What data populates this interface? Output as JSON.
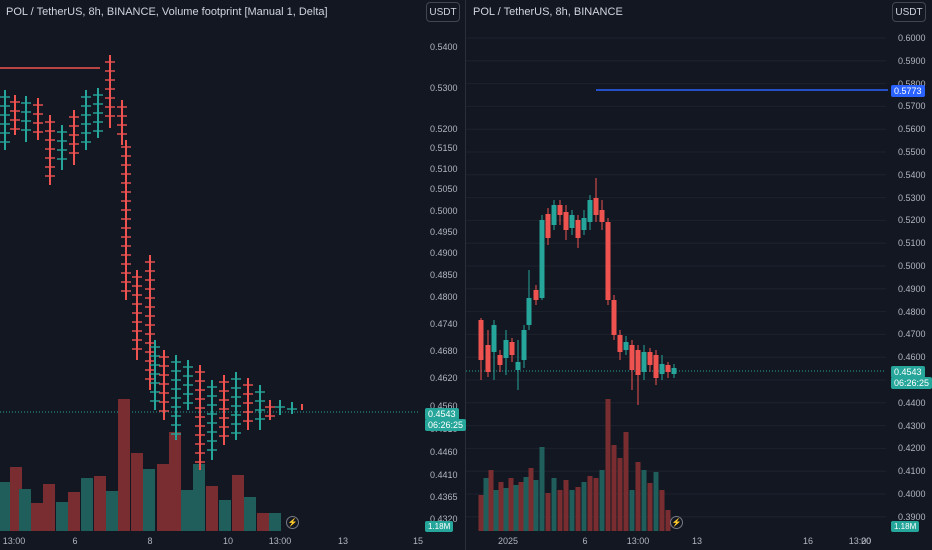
{
  "colors": {
    "bg": "#131722",
    "up": "#26a69a",
    "down": "#ef5350",
    "up_vol": "#1f5e5a",
    "down_vol": "#7a2d30",
    "grid": "#1e222d",
    "accent_line": "#2962ff"
  },
  "left": {
    "title": "POL / TetherUS, 8h, BINANCE, Volume footprint [Manual 1, Delta]",
    "currency": "USDT",
    "price_labels": [
      "0.5400",
      "0.5300",
      "0.5200",
      "0.5150",
      "0.5100",
      "0.5050",
      "0.5000",
      "0.4950",
      "0.4900",
      "0.4850",
      "0.4800",
      "0.4740",
      "0.4680",
      "0.4620",
      "0.4560",
      "0.4510",
      "0.4460",
      "0.4410",
      "0.4365",
      "0.4320"
    ],
    "last_price": "0.4543",
    "countdown": "06:26:25",
    "volume_tag": "1.18M",
    "time_labels": [
      "13:00",
      "6",
      "8",
      "10",
      "13:00",
      "13",
      "15"
    ]
  },
  "right": {
    "title": "POL / TetherUS, 8h, BINANCE",
    "currency": "USDT",
    "price_labels": [
      "0.6000",
      "0.5900",
      "0.5800",
      "0.5700",
      "0.5600",
      "0.5500",
      "0.5400",
      "0.5300",
      "0.5200",
      "0.5100",
      "0.5000",
      "0.4900",
      "0.4800",
      "0.4700",
      "0.4600",
      "0.4500",
      "0.4400",
      "0.4300",
      "0.4200",
      "0.4100",
      "0.4000",
      "0.3900"
    ],
    "alert_price": "0.5773",
    "last_price": "0.4543",
    "countdown": "06:26:25",
    "volume_tag": "1.18M",
    "time_labels": [
      "2025",
      "6",
      "13:00",
      "13",
      "16",
      "20",
      "13:00"
    ]
  }
}
